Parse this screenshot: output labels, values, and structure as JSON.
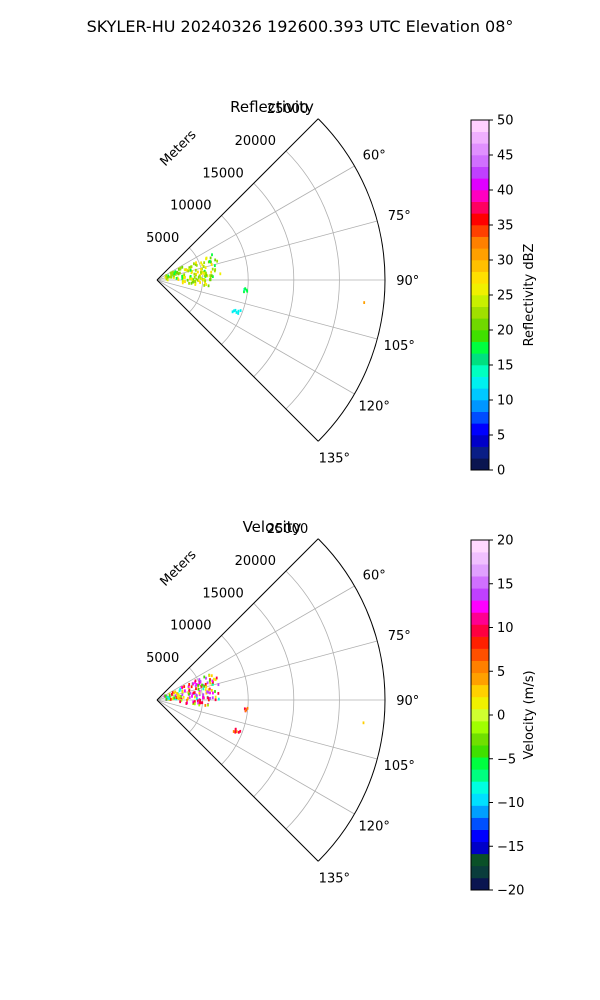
{
  "figure_title": "SKYLER-HU  20240326  192600.393 UTC Elevation 08°",
  "range_axis_label": "Meters",
  "chart_data": [
    {
      "type": "polar_sector",
      "title": "Reflectivity",
      "azimuth_range_deg": [
        45,
        135
      ],
      "range_max_m": 25000,
      "range_ticks": [
        "5000",
        "10000",
        "15000",
        "20000",
        "25000"
      ],
      "range_tick_values": [
        5000,
        10000,
        15000,
        20000,
        25000
      ],
      "azimuth_ticks": [
        "60°",
        "75°",
        "90°",
        "105°",
        "120°",
        "135°"
      ],
      "azimuth_tick_values": [
        60,
        75,
        90,
        105,
        120,
        135
      ],
      "grid": true,
      "colorbar": {
        "label": "Reflectivity dBZ",
        "min": 0,
        "max": 50,
        "ticks": [
          "0",
          "5",
          "10",
          "15",
          "20",
          "25",
          "30",
          "35",
          "40",
          "45",
          "50"
        ],
        "tick_values": [
          0,
          5,
          10,
          15,
          20,
          25,
          30,
          35,
          40,
          45,
          50
        ],
        "colors": [
          "#0a1550",
          "#0a1e86",
          "#0000c8",
          "#0000ff",
          "#004cff",
          "#0096ff",
          "#00c8ff",
          "#00f0f0",
          "#00ffc0",
          "#00e080",
          "#00ff40",
          "#40e000",
          "#70d800",
          "#a0e000",
          "#c8f000",
          "#f0f000",
          "#ffe000",
          "#ffc000",
          "#ffa000",
          "#ff8000",
          "#ff4000",
          "#ff0000",
          "#ff0060",
          "#ff00c0",
          "#e000ff",
          "#c040ff",
          "#d070ff",
          "#e090ff",
          "#f0b0ff",
          "#ffd0ff"
        ]
      },
      "clusters": [
        {
          "az": [
            63,
            90
          ],
          "r": [
            900,
            7000
          ],
          "values": [
            18,
            22,
            25,
            28,
            20,
            23
          ],
          "n": 130
        },
        {
          "az": [
            90,
            97
          ],
          "r": [
            2500,
            5800
          ],
          "values": [
            22,
            25,
            27,
            21
          ],
          "n": 22
        },
        {
          "az": [
            95,
            98
          ],
          "r": [
            9500,
            10000
          ],
          "values": [
            14,
            18
          ],
          "n": 5
        },
        {
          "az": [
            110,
            113
          ],
          "r": [
            8800,
            9800
          ],
          "values": [
            12,
            13
          ],
          "n": 7
        },
        {
          "az": [
            96,
            96.6
          ],
          "r": [
            22700,
            23000
          ],
          "values": [
            30
          ],
          "n": 1
        }
      ]
    },
    {
      "type": "polar_sector",
      "title": "Velocity",
      "azimuth_range_deg": [
        45,
        135
      ],
      "range_max_m": 25000,
      "range_ticks": [
        "5000",
        "10000",
        "15000",
        "20000",
        "25000"
      ],
      "range_tick_values": [
        5000,
        10000,
        15000,
        20000,
        25000
      ],
      "azimuth_ticks": [
        "60°",
        "75°",
        "90°",
        "105°",
        "120°",
        "135°"
      ],
      "azimuth_tick_values": [
        60,
        75,
        90,
        105,
        120,
        135
      ],
      "grid": true,
      "colorbar": {
        "label": "Velocity (m/s)",
        "min": -20,
        "max": 20,
        "ticks": [
          "−20",
          "−15",
          "−10",
          "−5",
          "0",
          "5",
          "10",
          "15",
          "20"
        ],
        "tick_values": [
          -20,
          -15,
          -10,
          -5,
          0,
          5,
          10,
          15,
          20
        ],
        "colors": [
          "#0a1550",
          "#0a3c3c",
          "#0a5028",
          "#0000c8",
          "#0000ff",
          "#0050ff",
          "#00a0ff",
          "#00e0ff",
          "#00ffe0",
          "#00ff80",
          "#00ff40",
          "#40e000",
          "#70e000",
          "#a0ff00",
          "#d0ff30",
          "#f0f000",
          "#ffd000",
          "#ffa000",
          "#ff8000",
          "#ff5000",
          "#ff2000",
          "#ff0040",
          "#ff0090",
          "#ff00ff",
          "#c040ff",
          "#d070ff",
          "#e0a0ff",
          "#f0c0ff",
          "#ffd8ff"
        ]
      },
      "clusters": [
        {
          "az": [
            63,
            90
          ],
          "r": [
            900,
            7000
          ],
          "values": [
            -4,
            3,
            8,
            12,
            -8,
            1,
            10,
            14
          ],
          "n": 140
        },
        {
          "az": [
            90,
            97
          ],
          "r": [
            2500,
            5800
          ],
          "values": [
            -2,
            5,
            9,
            12
          ],
          "n": 22
        },
        {
          "az": [
            95,
            98
          ],
          "r": [
            9500,
            10000
          ],
          "values": [
            6,
            9
          ],
          "n": 5
        },
        {
          "az": [
            110,
            113
          ],
          "r": [
            8800,
            9800
          ],
          "values": [
            6,
            9
          ],
          "n": 7
        },
        {
          "az": [
            96,
            96.6
          ],
          "r": [
            22700,
            23000
          ],
          "values": [
            3
          ],
          "n": 1
        }
      ]
    }
  ]
}
